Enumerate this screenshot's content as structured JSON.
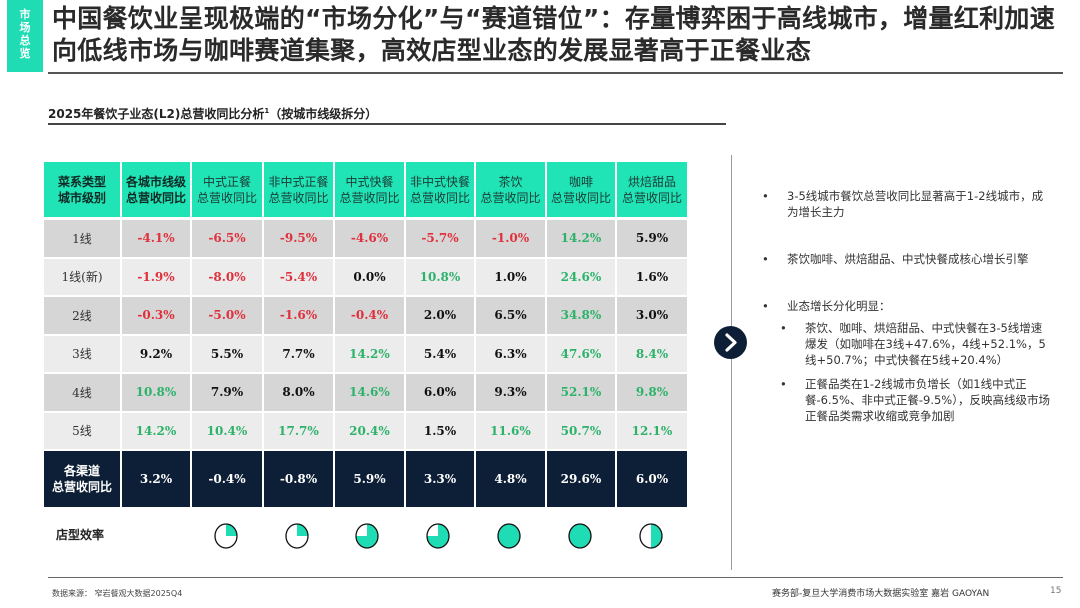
{
  "tag": "市场总览",
  "title": "中国餐饮业呈现极端的“市场分化”与“赛道错位”：存量博弈困于高线城市，增量红利加速向低线市场与咖啡赛道集聚，高效店型业态的发展显著高于正餐业态",
  "subtitle": "2025年餐饮子业态(L2)总营收同比分析",
  "subtitle_sup": "1",
  "subtitle_note": "（按城市线级拆分）",
  "table": {
    "headers": [
      [
        "菜系类型",
        "城市级别"
      ],
      [
        "各城市线级",
        "总营收同比"
      ],
      [
        "中式正餐",
        "总营收同比"
      ],
      [
        "非中式正餐",
        "总营收同比"
      ],
      [
        "中式快餐",
        "总营收同比"
      ],
      [
        "非中式快餐",
        "总营收同比"
      ],
      [
        "茶饮",
        "总营收同比"
      ],
      [
        "咖啡",
        "总营收同比"
      ],
      [
        "烘焙甜品",
        "总营收同比"
      ]
    ],
    "rows": [
      {
        "label": "1线",
        "cells": [
          {
            "v": "-4.1%",
            "c": "red"
          },
          {
            "v": "-6.5%",
            "c": "red"
          },
          {
            "v": "-9.5%",
            "c": "red"
          },
          {
            "v": "-4.6%",
            "c": "red"
          },
          {
            "v": "-5.7%",
            "c": "red"
          },
          {
            "v": "-1.0%",
            "c": "red"
          },
          {
            "v": "14.2%",
            "c": "green"
          },
          {
            "v": "5.9%",
            "c": "black"
          }
        ]
      },
      {
        "label": "1线(新)",
        "cells": [
          {
            "v": "-1.9%",
            "c": "red"
          },
          {
            "v": "-8.0%",
            "c": "red"
          },
          {
            "v": "-5.4%",
            "c": "red"
          },
          {
            "v": "0.0%",
            "c": "black"
          },
          {
            "v": "10.8%",
            "c": "green"
          },
          {
            "v": "1.0%",
            "c": "black"
          },
          {
            "v": "24.6%",
            "c": "green"
          },
          {
            "v": "1.6%",
            "c": "black"
          }
        ]
      },
      {
        "label": "2线",
        "cells": [
          {
            "v": "-0.3%",
            "c": "red"
          },
          {
            "v": "-5.0%",
            "c": "red"
          },
          {
            "v": "-1.6%",
            "c": "red"
          },
          {
            "v": "-0.4%",
            "c": "red"
          },
          {
            "v": "2.0%",
            "c": "black"
          },
          {
            "v": "6.5%",
            "c": "black"
          },
          {
            "v": "34.8%",
            "c": "green"
          },
          {
            "v": "3.0%",
            "c": "black"
          }
        ]
      },
      {
        "label": "3线",
        "cells": [
          {
            "v": "9.2%",
            "c": "black"
          },
          {
            "v": "5.5%",
            "c": "black"
          },
          {
            "v": "7.7%",
            "c": "black"
          },
          {
            "v": "14.2%",
            "c": "green"
          },
          {
            "v": "5.4%",
            "c": "black"
          },
          {
            "v": "6.3%",
            "c": "black"
          },
          {
            "v": "47.6%",
            "c": "green"
          },
          {
            "v": "8.4%",
            "c": "green"
          }
        ]
      },
      {
        "label": "4线",
        "cells": [
          {
            "v": "10.8%",
            "c": "green"
          },
          {
            "v": "7.9%",
            "c": "black"
          },
          {
            "v": "8.0%",
            "c": "black"
          },
          {
            "v": "14.6%",
            "c": "green"
          },
          {
            "v": "6.0%",
            "c": "black"
          },
          {
            "v": "9.3%",
            "c": "black"
          },
          {
            "v": "52.1%",
            "c": "green"
          },
          {
            "v": "9.8%",
            "c": "green"
          }
        ]
      },
      {
        "label": "5线",
        "cells": [
          {
            "v": "14.2%",
            "c": "green"
          },
          {
            "v": "10.4%",
            "c": "green"
          },
          {
            "v": "17.7%",
            "c": "green"
          },
          {
            "v": "20.4%",
            "c": "green"
          },
          {
            "v": "1.5%",
            "c": "black"
          },
          {
            "v": "11.6%",
            "c": "green"
          },
          {
            "v": "50.7%",
            "c": "green"
          },
          {
            "v": "12.1%",
            "c": "green"
          }
        ]
      }
    ],
    "total": {
      "label": [
        "各渠道",
        "总营收同比"
      ],
      "cells": [
        {
          "v": "3.2%",
          "c": "black"
        },
        {
          "v": "-0.4%",
          "c": "red"
        },
        {
          "v": "-0.8%",
          "c": "red"
        },
        {
          "v": "5.9%",
          "c": "black"
        },
        {
          "v": "3.3%",
          "c": "black"
        },
        {
          "v": "4.8%",
          "c": "black"
        },
        {
          "v": "29.6%",
          "c": "green"
        },
        {
          "v": "6.0%",
          "c": "black"
        }
      ]
    }
  },
  "efficiency": {
    "label": "店型效率",
    "levels": [
      0.25,
      0.25,
      0.75,
      0.75,
      1,
      1,
      0.5
    ],
    "color": "#1fdcb4"
  },
  "bullets": [
    {
      "text": "3-5线城市餐饮总营收同比显著高于1-2线城市，成为增长主力"
    },
    {
      "text": "茶饮咖啡、烘焙甜品、中式快餐成核心增长引擎"
    },
    {
      "text": "业态增长分化明显：",
      "sub": [
        "茶饮、咖啡、烘焙甜品、中式快餐在3-5线增速爆发（如咖啡在3线+47.6%，4线+52.1%，5线+50.7%；中式快餐在5线+20.4%）",
        "正餐品类在1-2线城市负增长（如1线中式正餐-6.5%、非中式正餐-9.5%），反映高线级市场正餐品类需求收缩或竞争加剧"
      ]
    }
  ],
  "footer": {
    "source": "数据来源：  窄岩餐观大数据2025Q4",
    "credit": "赛务部-复旦大学消费市场大数据实验室    嘉岩 GAOYAN",
    "page": "15"
  },
  "colors": {
    "accent": "#20e3b6",
    "navy": "#0d1f36",
    "red": "#e0303c",
    "green": "#2db26a"
  }
}
